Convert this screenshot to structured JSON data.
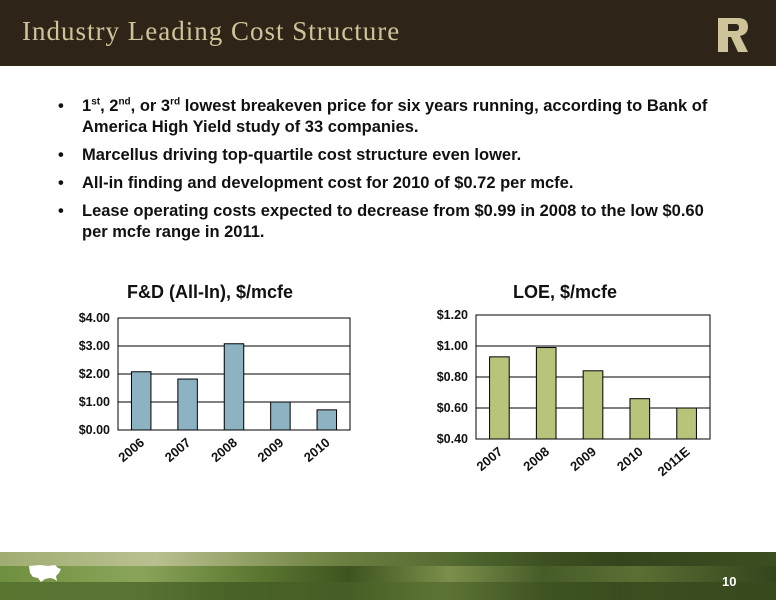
{
  "slide": {
    "title": "Industry Leading Cost Structure",
    "page_number": "10",
    "colors": {
      "header_bg": "#2f2418",
      "title_text": "#cfc39a",
      "fd_bar": "#8db3c2",
      "loe_bar": "#b8c47a"
    },
    "icons": [
      "range-logo-icon",
      "usa-map-icon"
    ]
  },
  "bullets": [
    {
      "parts": [
        {
          "t": "1"
        },
        {
          "sup": "st"
        },
        {
          "t": ", 2"
        },
        {
          "sup": "nd"
        },
        {
          "t": ", or 3"
        },
        {
          "sup": "rd"
        },
        {
          "t": " lowest breakeven price for six years running, according to Bank of America High Yield study of 33 companies."
        }
      ]
    },
    {
      "parts": [
        {
          "t": "Marcellus driving top-quartile cost structure even lower."
        }
      ]
    },
    {
      "parts": [
        {
          "t": "All-in finding and development cost for 2010 of $0.72 per mcfe."
        }
      ]
    },
    {
      "parts": [
        {
          "t": "Lease operating costs expected to decrease from $0.99 in 2008 to the low $0.60 per mcfe range in 2011."
        }
      ]
    }
  ],
  "chart_data": [
    {
      "type": "bar",
      "title": "F&D (All-In), $/mcfe",
      "categories": [
        "2006",
        "2007",
        "2008",
        "2009",
        "2010"
      ],
      "values": [
        2.08,
        1.82,
        3.08,
        1.0,
        0.72
      ],
      "ylim": [
        0,
        4
      ],
      "yticks": [
        0,
        1,
        2,
        3,
        4
      ],
      "ytick_labels": [
        "$0.00",
        "$1.00",
        "$2.00",
        "$3.00",
        "$4.00"
      ],
      "grid": true,
      "color": "#8db3c2"
    },
    {
      "type": "bar",
      "title": "LOE, $/mcfe",
      "categories": [
        "2007",
        "2008",
        "2009",
        "2010",
        "2011E"
      ],
      "values": [
        0.93,
        0.99,
        0.84,
        0.66,
        0.6
      ],
      "ylim": [
        0.4,
        1.2
      ],
      "yticks": [
        0.4,
        0.6,
        0.8,
        1.0,
        1.2
      ],
      "ytick_labels": [
        "$0.40",
        "$0.60",
        "$0.80",
        "$1.00",
        "$1.20"
      ],
      "grid": true,
      "color": "#b8c47a"
    }
  ]
}
